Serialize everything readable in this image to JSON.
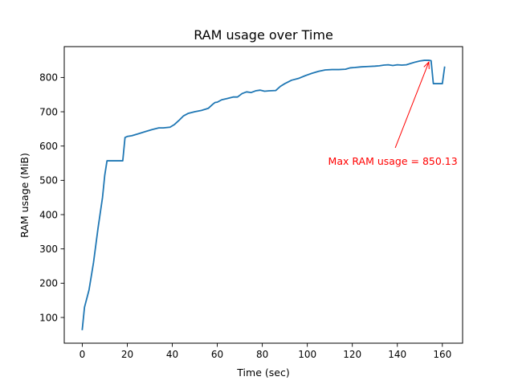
{
  "chart_data": {
    "type": "line",
    "title": "RAM usage over Time",
    "xlabel": "Time (sec)",
    "ylabel": "RAM usage (MiB)",
    "xlim": [
      -8,
      169
    ],
    "ylim": [
      25,
      890
    ],
    "xticks": [
      0,
      20,
      40,
      60,
      80,
      100,
      120,
      140,
      160
    ],
    "yticks": [
      100,
      200,
      300,
      400,
      500,
      600,
      700,
      800
    ],
    "grid": false,
    "line_color": "#1f77b4",
    "series": [
      {
        "x": [
          0,
          1,
          3,
          5,
          7,
          9,
          10,
          11,
          12,
          14,
          16,
          18,
          19,
          20,
          22,
          25,
          28,
          31,
          34,
          36,
          39,
          41,
          43,
          45,
          47,
          50,
          53,
          56,
          58,
          59,
          60,
          62,
          64,
          67,
          69,
          71,
          73,
          75,
          77,
          79,
          81,
          83,
          86,
          88,
          90,
          93,
          96,
          99,
          102,
          105,
          108,
          111,
          114,
          117,
          119,
          121,
          124,
          127,
          130,
          132,
          134,
          136,
          138,
          140,
          142,
          144,
          146,
          148,
          150,
          152,
          154,
          155,
          156,
          158,
          160,
          161
        ],
        "y": [
          65,
          130,
          180,
          260,
          360,
          450,
          515,
          557,
          557,
          557,
          557,
          557,
          625,
          628,
          630,
          636,
          642,
          648,
          653,
          653,
          655,
          663,
          675,
          688,
          695,
          700,
          704,
          710,
          722,
          727,
          728,
          735,
          738,
          743,
          743,
          753,
          758,
          756,
          761,
          763,
          760,
          761,
          762,
          774,
          782,
          792,
          797,
          805,
          812,
          818,
          822,
          823,
          823,
          824,
          828,
          829,
          831,
          832,
          833,
          834,
          836,
          837,
          835,
          837,
          836,
          837,
          841,
          845,
          848,
          850,
          850.13,
          849,
          782,
          782,
          782,
          830
        ]
      }
    ],
    "annotation": {
      "text": "Max RAM usage = 850.13",
      "color": "#ff0000",
      "point": [
        154,
        845
      ],
      "text_anchor_data": [
        138,
        555
      ]
    }
  }
}
